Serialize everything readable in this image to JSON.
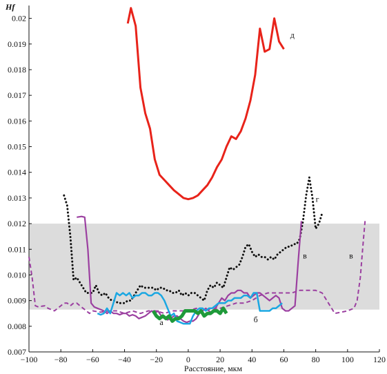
{
  "chart_data": {
    "type": "line",
    "title": "",
    "xlabel": "Расстояние, мкм",
    "ylabel": "Hf",
    "xlim": [
      -100,
      120
    ],
    "ylim": [
      0.007,
      0.0205
    ],
    "xticks": [
      -100,
      -80,
      -60,
      -40,
      -20,
      0,
      20,
      40,
      60,
      80,
      100,
      120
    ],
    "yticks": [
      0.007,
      0.008,
      0.009,
      0.01,
      0.011,
      0.012,
      0.013,
      0.014,
      0.015,
      0.016,
      0.017,
      0.018,
      0.019,
      0.02
    ],
    "ytick_labels": [
      "0.007",
      "0.008",
      "0.009",
      "0.010",
      "0.011",
      "0.012",
      "0.013",
      "0.014",
      "0.015",
      "0.016",
      "0.017",
      "0.018",
      "0.019",
      "0.02"
    ],
    "xtick_labels": [
      "−100",
      "−80",
      "−60",
      "−40",
      "−20",
      "0",
      "20",
      "40",
      "60",
      "80",
      "100",
      "120"
    ],
    "band": {
      "ymin": 0.00865,
      "ymax": 0.012,
      "color": "#dcdcdc"
    },
    "grid": false,
    "series": [
      {
        "name": "д",
        "color": "#e8231a",
        "style": "solid",
        "width": 3,
        "x": [
          -38,
          -36,
          -33,
          -30,
          -27,
          -24,
          -21,
          -18,
          -15,
          -12,
          -9,
          -6,
          -3,
          0,
          3,
          6,
          9,
          12,
          15,
          18,
          21,
          24,
          27,
          30,
          33,
          36,
          39,
          42,
          45,
          48,
          51,
          54,
          57,
          60
        ],
        "y": [
          0.0198,
          0.0204,
          0.0197,
          0.0173,
          0.0163,
          0.0157,
          0.0145,
          0.0139,
          0.0137,
          0.0135,
          0.0133,
          0.01315,
          0.013,
          0.01295,
          0.013,
          0.0131,
          0.0133,
          0.0135,
          0.0138,
          0.0142,
          0.0145,
          0.015,
          0.0154,
          0.0153,
          0.0156,
          0.0161,
          0.0168,
          0.0178,
          0.0196,
          0.0187,
          0.0188,
          0.02,
          0.0191,
          0.0188
        ],
        "label_pos": [
          64,
          0.01925
        ]
      },
      {
        "name": "г",
        "color": "#111111",
        "style": "dotted",
        "width": 3,
        "x": [
          -78,
          -76,
          -74,
          -72,
          -70,
          -68,
          -66,
          -64,
          -62,
          -60,
          -58,
          -56,
          -54,
          -52,
          -50,
          -48,
          -46,
          -44,
          -42,
          -40,
          -38,
          -36,
          -34,
          -32,
          -30,
          -28,
          -26,
          -24,
          -22,
          -20,
          -18,
          -16,
          -14,
          -12,
          -10,
          -8,
          -6,
          -4,
          -2,
          0,
          2,
          4,
          6,
          8,
          10,
          12,
          14,
          16,
          18,
          20,
          22,
          24,
          26,
          28,
          30,
          32,
          34,
          36,
          38,
          40,
          42,
          44,
          46,
          48,
          50,
          52,
          54,
          56,
          58,
          60,
          62,
          64,
          66,
          68,
          70,
          72,
          74,
          76,
          78,
          80,
          82,
          84
        ],
        "y": [
          0.0131,
          0.0127,
          0.0115,
          0.0098,
          0.0099,
          0.0097,
          0.0095,
          0.0093,
          0.0093,
          0.0093,
          0.0096,
          0.0093,
          0.0092,
          0.0093,
          0.0091,
          0.009,
          0.009,
          0.0089,
          0.0089,
          0.0089,
          0.009,
          0.009,
          0.0092,
          0.0094,
          0.0096,
          0.0095,
          0.0095,
          0.0095,
          0.0095,
          0.0094,
          0.0095,
          0.0095,
          0.0094,
          0.0094,
          0.0093,
          0.0093,
          0.0094,
          0.0092,
          0.0093,
          0.0092,
          0.0093,
          0.0093,
          0.0092,
          0.0091,
          0.009,
          0.0094,
          0.0096,
          0.0095,
          0.0097,
          0.0096,
          0.0095,
          0.0099,
          0.0103,
          0.0102,
          0.0103,
          0.0104,
          0.0107,
          0.0111,
          0.0112,
          0.0109,
          0.0107,
          0.0108,
          0.0107,
          0.0107,
          0.0106,
          0.0107,
          0.0106,
          0.0108,
          0.0109,
          0.011,
          0.0111,
          0.0111,
          0.0112,
          0.0112,
          0.0114,
          0.0121,
          0.0131,
          0.0138,
          0.013,
          0.0118,
          0.012,
          0.0124
        ],
        "label_pos": [
          80,
          0.01285
        ]
      },
      {
        "name": "в",
        "color": "#9b3fa0",
        "style": "solid",
        "width": 2.2,
        "x": [
          -70,
          -67,
          -65,
          -63,
          -61,
          -59,
          -57,
          -55,
          -53,
          -51,
          -49,
          -47,
          -45,
          -43,
          -41,
          -39,
          -37,
          -35,
          -33,
          -31,
          -29,
          -27,
          -25,
          -23,
          -21,
          -19,
          -17,
          -15,
          -13,
          -11,
          -9,
          -7,
          -5,
          -3,
          -1,
          1,
          3,
          5,
          7,
          9,
          11,
          13,
          15,
          17,
          19,
          21,
          23,
          25,
          27,
          29,
          31,
          33,
          35,
          37,
          39,
          41,
          43,
          45,
          47,
          49,
          51,
          53,
          55,
          57,
          59,
          61,
          63,
          65,
          67,
          69,
          71
        ],
        "y": [
          0.01225,
          0.01228,
          0.01225,
          0.011,
          0.0089,
          0.00875,
          0.0087,
          0.00865,
          0.0086,
          0.0085,
          0.0086,
          0.0085,
          0.0085,
          0.00845,
          0.0085,
          0.0085,
          0.0084,
          0.00845,
          0.0084,
          0.0083,
          0.00835,
          0.0084,
          0.0085,
          0.0086,
          0.0085,
          0.0086,
          0.0084,
          0.0084,
          0.00825,
          0.0083,
          0.0084,
          0.0084,
          0.0083,
          0.0082,
          0.00815,
          0.0082,
          0.0082,
          0.0083,
          0.0085,
          0.0086,
          0.0087,
          0.0086,
          0.0085,
          0.0087,
          0.0089,
          0.0091,
          0.009,
          0.0092,
          0.0093,
          0.0093,
          0.0094,
          0.0094,
          0.0093,
          0.0093,
          0.0091,
          0.0092,
          0.0093,
          0.0093,
          0.0092,
          0.0091,
          0.009,
          0.0091,
          0.0092,
          0.0091,
          0.0087,
          0.0086,
          0.0086,
          0.0087,
          0.0088,
          0.0105,
          0.0121
        ],
        "label_pos": [
          72,
          0.01065
        ]
      },
      {
        "name": "в",
        "color": "#9b3fa0",
        "style": "dashed",
        "width": 2,
        "x": [
          -100,
          -98,
          -96,
          -94,
          -92,
          -90,
          -88,
          -86,
          -84,
          -82,
          -80,
          -78,
          -76,
          -74,
          -72,
          -70,
          -68,
          -66,
          -64,
          -62,
          -60,
          -55,
          -50,
          -45,
          -40,
          -35,
          -30,
          -25,
          -20,
          -15,
          -10,
          -5,
          0,
          5,
          10,
          15,
          20,
          25,
          30,
          35,
          40,
          45,
          50,
          55,
          60,
          65,
          70,
          75,
          80,
          84,
          88,
          92,
          96,
          100,
          104,
          106,
          108,
          110,
          111
        ],
        "y": [
          0.0107,
          0.0099,
          0.0088,
          0.00875,
          0.00878,
          0.0088,
          0.0087,
          0.00865,
          0.0086,
          0.0087,
          0.0088,
          0.0089,
          0.0089,
          0.0088,
          0.0089,
          0.0089,
          0.0088,
          0.0087,
          0.0086,
          0.0085,
          0.0086,
          0.00855,
          0.0086,
          0.0086,
          0.0085,
          0.0086,
          0.0085,
          0.0086,
          0.0086,
          0.0085,
          0.0086,
          0.0086,
          0.0086,
          0.0087,
          0.0086,
          0.0087,
          0.0087,
          0.0088,
          0.0089,
          0.0089,
          0.009,
          0.0092,
          0.0093,
          0.0093,
          0.0093,
          0.0093,
          0.0094,
          0.0094,
          0.0094,
          0.0093,
          0.0089,
          0.0085,
          0.00855,
          0.0086,
          0.0087,
          0.009,
          0.0099,
          0.0114,
          0.0121
        ],
        "label_pos": [
          101,
          0.01065
        ]
      },
      {
        "name": "б",
        "color": "#1aa7e2",
        "style": "solid",
        "width": 2.5,
        "x": [
          -57,
          -55,
          -53,
          -51,
          -49,
          -47,
          -45,
          -43,
          -41,
          -39,
          -37,
          -35,
          -33,
          -31,
          -29,
          -27,
          -25,
          -23,
          -21,
          -19,
          -17,
          -15,
          -13,
          -11,
          -9,
          -7,
          -5,
          -3,
          -1,
          1,
          3,
          5,
          7,
          9,
          11,
          13,
          15,
          17,
          19,
          21,
          23,
          25,
          27,
          29,
          31,
          33,
          35,
          37,
          39,
          41,
          43,
          45,
          47,
          49,
          51,
          53,
          55,
          57,
          59
        ],
        "y": [
          0.0085,
          0.00845,
          0.0085,
          0.0087,
          0.0085,
          0.0089,
          0.0093,
          0.0092,
          0.0093,
          0.0092,
          0.0093,
          0.0091,
          0.0092,
          0.0092,
          0.0093,
          0.0093,
          0.0092,
          0.0092,
          0.0093,
          0.0093,
          0.0092,
          0.009,
          0.0087,
          0.0084,
          0.0085,
          0.0082,
          0.00815,
          0.0081,
          0.0081,
          0.0081,
          0.0084,
          0.0086,
          0.0087,
          0.0087,
          0.0086,
          0.0087,
          0.0087,
          0.0088,
          0.0089,
          0.0089,
          0.0089,
          0.009,
          0.009,
          0.0091,
          0.0091,
          0.0091,
          0.0092,
          0.0092,
          0.0091,
          0.0093,
          0.0093,
          0.0086,
          0.0086,
          0.0086,
          0.0086,
          0.0087,
          0.0087,
          0.0088,
          0.0089
        ],
        "label_pos": [
          41,
          0.00815
        ]
      },
      {
        "name": "а",
        "color": "#1f9a3a",
        "style": "solid",
        "width": 5,
        "x": [
          -22,
          -20,
          -18,
          -16,
          -14,
          -12,
          -10,
          -8,
          -6,
          -4,
          -2,
          0,
          2,
          4,
          6,
          8,
          10,
          12,
          14,
          16,
          18,
          20,
          22,
          24
        ],
        "y": [
          0.0086,
          0.0084,
          0.0083,
          0.0084,
          0.0083,
          0.0084,
          0.0082,
          0.0083,
          0.0083,
          0.0084,
          0.0086,
          0.0086,
          0.0086,
          0.0086,
          0.0085,
          0.0086,
          0.0084,
          0.0085,
          0.0085,
          0.0086,
          0.0086,
          0.0085,
          0.0087,
          0.0085
        ],
        "label_pos": [
          -18,
          0.00805
        ]
      }
    ]
  }
}
